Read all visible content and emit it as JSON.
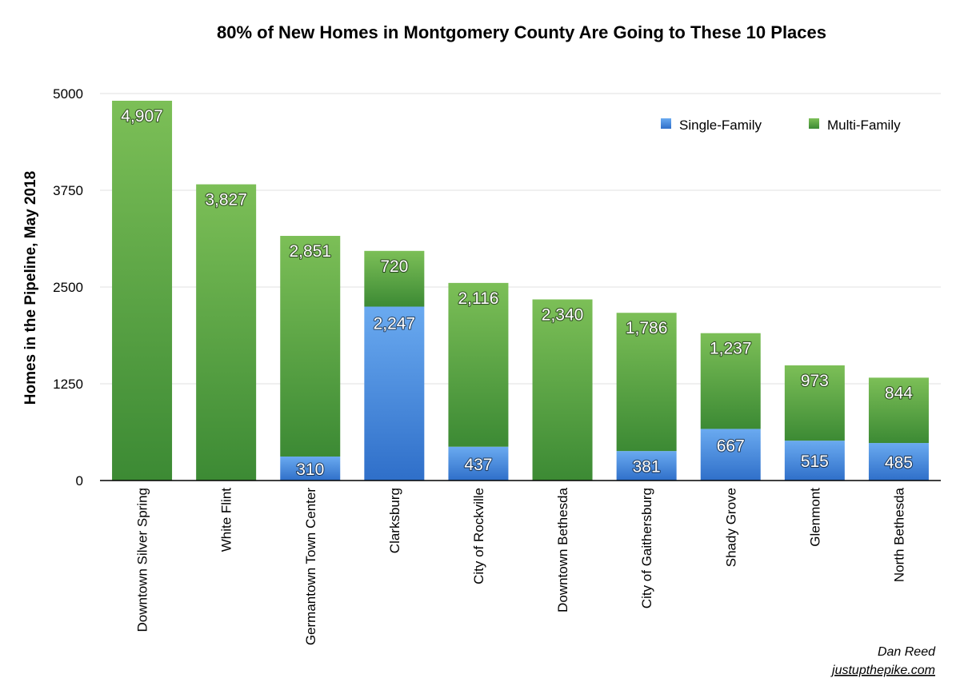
{
  "chart_data": {
    "type": "bar",
    "stacked": true,
    "title": "80% of New Homes in Montgomery County Are Going to These 10 Places",
    "xlabel": "",
    "ylabel": "Homes in the Pipeline, May 2018",
    "ylim": [
      0,
      5000
    ],
    "yticks": [
      0,
      1250,
      2500,
      3750,
      5000
    ],
    "ytick_labels": [
      "0",
      "1250",
      "2500",
      "3750",
      "5000"
    ],
    "grid": true,
    "legend_position": "top-right",
    "categories": [
      "Downtown Silver Spring",
      "White Flint",
      "Germantown Town Center",
      "Clarksburg",
      "City of Rockville",
      "Downtown Bethesda",
      "City of Gaithersburg",
      "Shady Grove",
      "Glenmont",
      "North Bethesda"
    ],
    "series": [
      {
        "name": "Single-Family",
        "color": "#3d7fd6",
        "values": [
          0,
          0,
          310,
          2247,
          437,
          0,
          381,
          667,
          515,
          485
        ],
        "labels": [
          "",
          "",
          "310",
          "2,247",
          "437",
          "",
          "381",
          "667",
          "515",
          "485"
        ]
      },
      {
        "name": "Multi-Family",
        "color": "#4a9a3c",
        "values": [
          4907,
          3827,
          2851,
          720,
          2116,
          2340,
          1786,
          1237,
          973,
          844
        ],
        "labels": [
          "4,907",
          "3,827",
          "2,851",
          "720",
          "2,116",
          "2,340",
          "1,786",
          "1,237",
          "973",
          "844"
        ]
      }
    ]
  },
  "credits": {
    "author": "Dan Reed",
    "site": "justupthepike.com"
  }
}
